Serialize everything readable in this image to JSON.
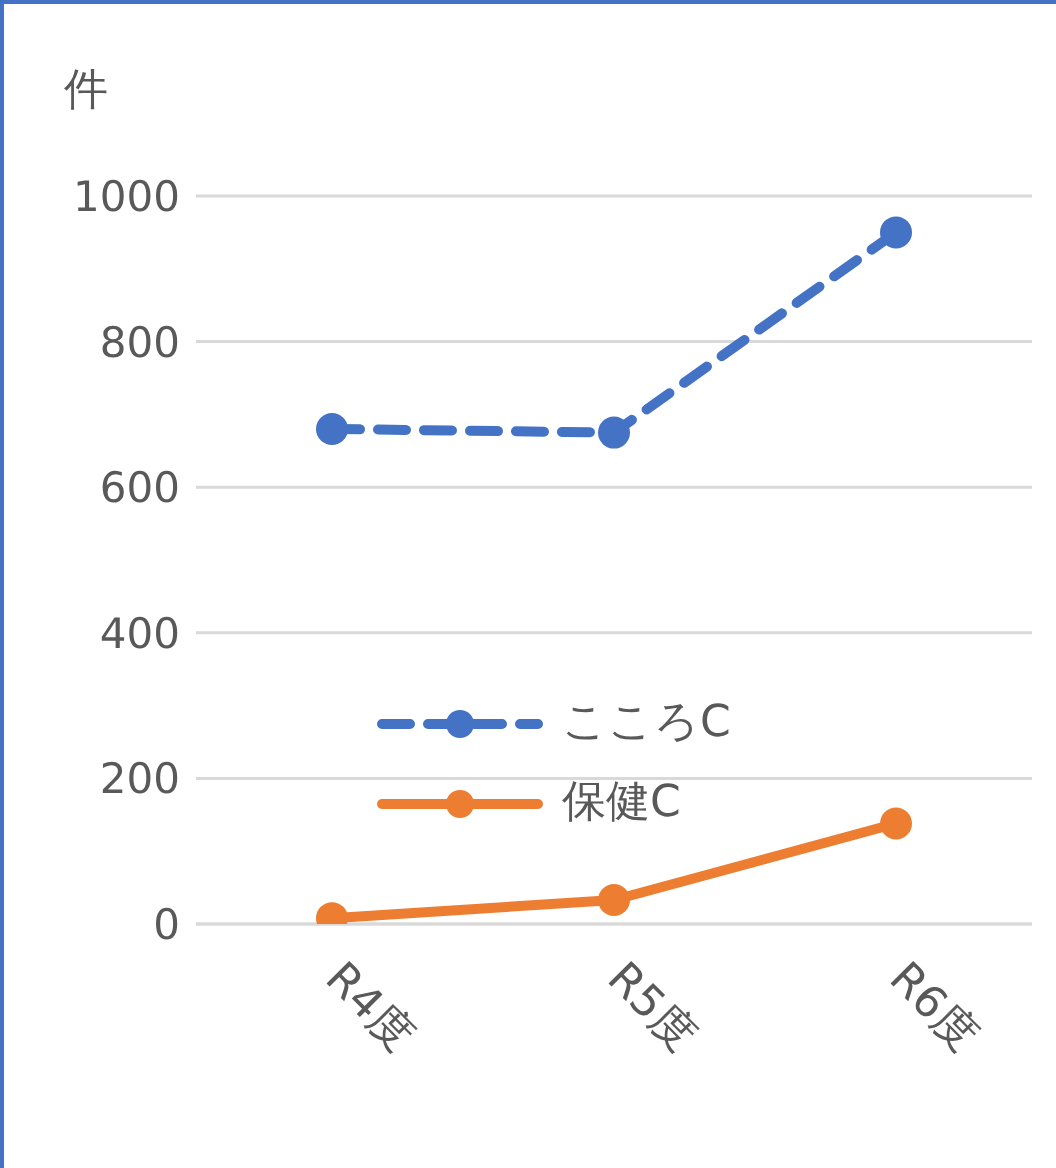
{
  "chart_data": {
    "type": "line",
    "ylabel": "件",
    "categories": [
      "R4度",
      "R5度",
      "R6度"
    ],
    "series": [
      {
        "name": "こころC",
        "color": "#4472c4",
        "values": [
          680,
          675,
          950
        ],
        "line_style": "dashed"
      },
      {
        "name": "保健C",
        "color": "#ed7d31",
        "values": [
          8,
          33,
          138
        ],
        "line_style": "solid"
      }
    ],
    "ylim": [
      0,
      1000
    ],
    "yticks": [
      0,
      200,
      400,
      600,
      800,
      1000
    ],
    "grid": "y",
    "legend": "center",
    "marker": "circle"
  }
}
